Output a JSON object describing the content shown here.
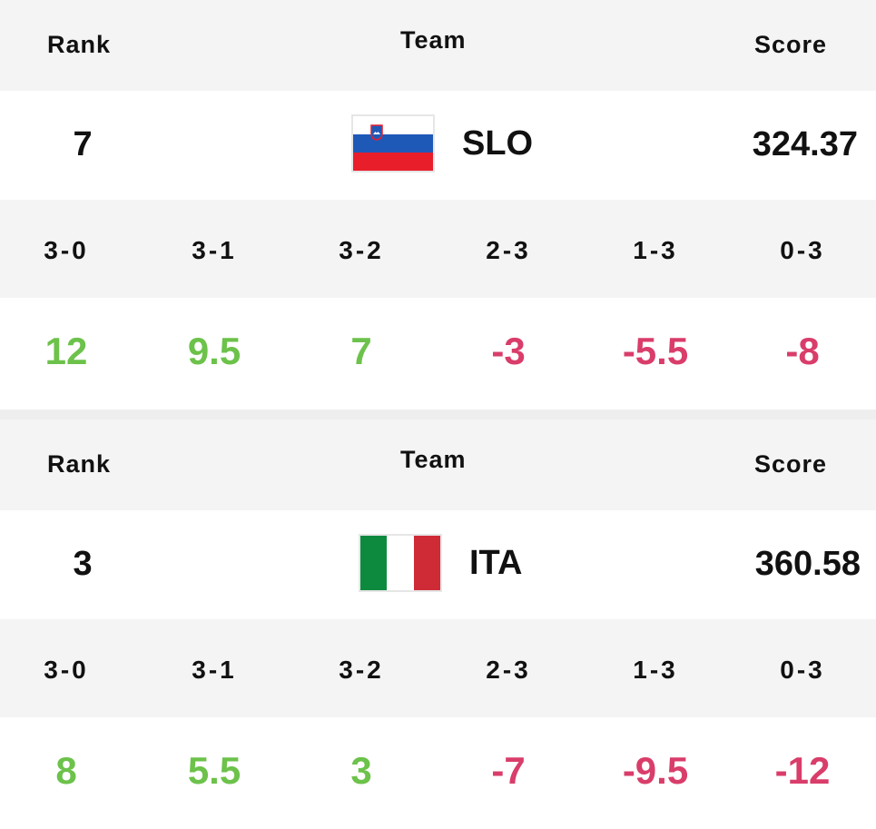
{
  "headers": {
    "rank": "Rank",
    "team": "Team",
    "score": "Score"
  },
  "outcome_labels": [
    "3-0",
    "3-1",
    "3-2",
    "2-3",
    "1-3",
    "0-3"
  ],
  "teams": [
    {
      "rank": "7",
      "code": "SLO",
      "flag_icon": "slovenia-flag-icon",
      "score": "324.37",
      "points": [
        "12",
        "9.5",
        "7",
        "-3",
        "-5.5",
        "-8"
      ]
    },
    {
      "rank": "3",
      "code": "ITA",
      "flag_icon": "italy-flag-icon",
      "score": "360.58",
      "points": [
        "8",
        "5.5",
        "3",
        "-7",
        "-9.5",
        "-12"
      ]
    }
  ],
  "colors": {
    "positive": "#6cc24a",
    "negative": "#d93d6a",
    "header_bg": "#f4f4f4"
  }
}
